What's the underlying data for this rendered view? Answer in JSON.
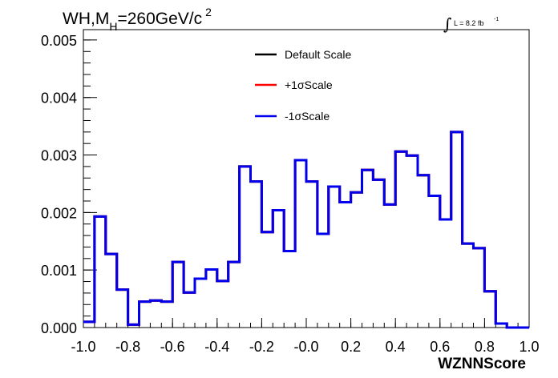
{
  "chart_data": {
    "type": "line",
    "title": {
      "main": "WH,M",
      "sub": "H",
      "rest": "=260GeV/c",
      "sup": "2"
    },
    "lumi": {
      "symbol": "∫",
      "text": "L = 8.2 fb",
      "sup": "-1"
    },
    "xlabel": "WZNNScore",
    "ylabel": "",
    "xlim": [
      -1.0,
      1.0
    ],
    "ylim": [
      0.0,
      0.00518
    ],
    "xticks": [
      "-1.0",
      "-0.8",
      "-0.6",
      "-0.4",
      "-0.2",
      "-0.0",
      "0.2",
      "0.4",
      "0.6",
      "0.8",
      "1.0"
    ],
    "xtick_values": [
      -1.0,
      -0.8,
      -0.6,
      -0.4,
      -0.2,
      0.0,
      0.2,
      0.4,
      0.6,
      0.8,
      1.0
    ],
    "yticks": [
      "0.000",
      "0.001",
      "0.002",
      "0.003",
      "0.004",
      "0.005"
    ],
    "ytick_values": [
      0.0,
      0.001,
      0.002,
      0.003,
      0.004,
      0.005
    ],
    "legend_position": "top-center",
    "grid": false,
    "bin_edges": [
      -1.0,
      -0.95,
      -0.9,
      -0.85,
      -0.8,
      -0.75,
      -0.7,
      -0.65,
      -0.6,
      -0.55,
      -0.5,
      -0.45,
      -0.4,
      -0.35,
      -0.3,
      -0.25,
      -0.2,
      -0.15,
      -0.1,
      -0.05,
      0.0,
      0.05,
      0.1,
      0.15,
      0.2,
      0.25,
      0.3,
      0.35,
      0.4,
      0.45,
      0.5,
      0.55,
      0.6,
      0.65,
      0.7,
      0.75,
      0.8,
      0.85,
      0.9,
      0.95,
      1.0
    ],
    "series": [
      {
        "name": "Default Scale",
        "color": "#000000",
        "values": [
          0.0001,
          0.00193,
          0.00128,
          0.00066,
          5e-05,
          0.00045,
          0.00047,
          0.00045,
          0.00114,
          0.00061,
          0.00085,
          0.00101,
          0.00081,
          0.00114,
          0.0028,
          0.00254,
          0.00166,
          0.00204,
          0.00133,
          0.00291,
          0.00254,
          0.00163,
          0.00245,
          0.00218,
          0.00235,
          0.00274,
          0.00257,
          0.00214,
          0.00306,
          0.00299,
          0.00265,
          0.00229,
          0.00188,
          0.0034,
          0.00146,
          0.00138,
          0.00063,
          7e-05,
          0.0,
          0.0
        ]
      },
      {
        "name": "+1σScale",
        "color": "#ff0000",
        "values": [
          0.0001,
          0.00193,
          0.00128,
          0.00066,
          5e-05,
          0.00045,
          0.00047,
          0.00045,
          0.00114,
          0.00061,
          0.00085,
          0.00101,
          0.00081,
          0.00114,
          0.0028,
          0.00254,
          0.00166,
          0.00204,
          0.00133,
          0.00291,
          0.00254,
          0.00163,
          0.00245,
          0.00218,
          0.00235,
          0.00274,
          0.00257,
          0.00214,
          0.00306,
          0.00299,
          0.00265,
          0.00229,
          0.00188,
          0.0034,
          0.00146,
          0.00138,
          0.00063,
          7e-05,
          0.0,
          0.0
        ]
      },
      {
        "name": "-1σScale",
        "color": "#0000ee",
        "values": [
          0.0001,
          0.00193,
          0.00128,
          0.00066,
          5e-05,
          0.00045,
          0.00047,
          0.00045,
          0.00114,
          0.00061,
          0.00085,
          0.00101,
          0.00081,
          0.00114,
          0.0028,
          0.00254,
          0.00166,
          0.00204,
          0.00133,
          0.00291,
          0.00254,
          0.00163,
          0.00245,
          0.00218,
          0.00235,
          0.00274,
          0.00257,
          0.00214,
          0.00306,
          0.00299,
          0.00265,
          0.00229,
          0.00188,
          0.0034,
          0.00146,
          0.00138,
          0.00063,
          7e-05,
          0.0,
          0.0
        ]
      }
    ]
  }
}
